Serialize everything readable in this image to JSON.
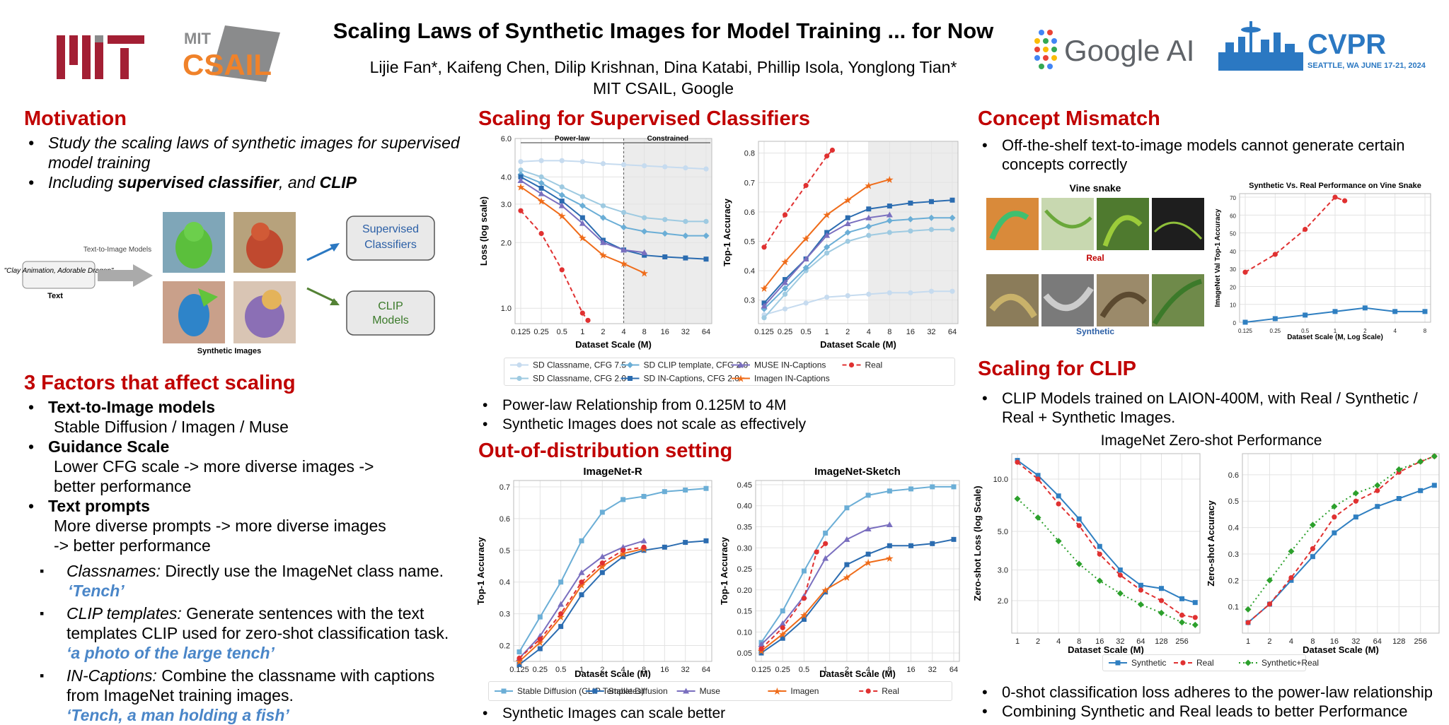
{
  "header": {
    "title": "Scaling Laws of Synthetic Images for Model Training ... for Now",
    "authors": "Lijie Fan*, Kaifeng Chen, Dilip Krishnan, Dina Katabi, Phillip Isola, Yonglong Tian*",
    "affil": "MIT CSAIL, Google",
    "logo_mit": "MIT",
    "logo_csail_top": "MIT",
    "logo_csail": "CSAIL",
    "logo_google": "Google AI",
    "logo_cvpr": "CVPR",
    "logo_cvpr_sub": "SEATTLE, WA  JUNE 17-21, 2024"
  },
  "motivation": {
    "title": "Motivation",
    "b1": "Study the scaling laws of synthetic images for supervised model training",
    "b2_pre": "Including ",
    "b2_b1": "supervised classifier",
    "b2_mid": ", and ",
    "b2_b2": "CLIP",
    "diagram": {
      "prompt": "\"Clay Animation, Adorable Dragon\"",
      "text_label": "Text",
      "arrow_label": "Text-to-Image Models",
      "images_label": "Synthetic Images",
      "box1": "Supervised Classifiers",
      "box2": "CLIP Models"
    }
  },
  "factors": {
    "title": "3 Factors that affect scaling",
    "f1": "Text-to-Image models",
    "f1d": "Stable Diffusion / Imagen / Muse",
    "f2": "Guidance Scale",
    "f2d1": "Lower CFG scale -> more diverse images ->",
    "f2d2": "better performance",
    "f3": "Text prompts",
    "f3d1": "More diverse prompts -> more diverse images",
    "f3d2": "-> better performance",
    "s1_i": "Classnames:",
    "s1": " Directly use the ImageNet class name.",
    "s1_ex": "‘Tench’",
    "s2_i": "CLIP templates:",
    "s2": " Generate sentences with the text templates CLIP used for zero-shot classification task.",
    "s2_ex": "‘a photo of the large tench’",
    "s3_i": "IN-Captions:",
    "s3": " Combine the classname with captions from ImageNet training images.",
    "s3_ex": "‘Tench, a man holding a fish’"
  },
  "supervised": {
    "title": "Scaling for Supervised Classifiers",
    "b1": "Power-law Relationship from 0.125M  to 4M",
    "b2": "Synthetic Images does not scale as effectively",
    "legend": [
      "SD Classname, CFG 7.5",
      "SD Classname, CFG 2.0",
      "SD CLIP template, CFG 2.0",
      "SD IN-Captions, CFG 2.0",
      "MUSE IN-Captions",
      "Imagen IN-Captions",
      "Real"
    ]
  },
  "ood": {
    "title": "Out-of-distribution setting",
    "b1": "Synthetic Images can scale better",
    "legend": [
      "Stable Diffusion (CLIP Templates)",
      "Stable Diffusion",
      "Muse",
      "Imagen",
      "Real"
    ]
  },
  "concept": {
    "title": "Concept Mismatch",
    "b1": "Off-the-shelf text-to-image models cannot generate certain concepts correctly",
    "vine": "Vine snake",
    "real": "Real",
    "synthetic": "Synthetic"
  },
  "clip": {
    "title": "Scaling for CLIP",
    "b1": "CLIP Models trained on LAION-400M, with Real / Synthetic / Real + Synthetic Images.",
    "chart_title": "ImageNet Zero-shot Performance",
    "legend": [
      "Synthetic",
      "Real",
      "Synthetic+Real"
    ],
    "b2": "0-shot classification loss adheres to the power-law relationship",
    "b3": "Combining Synthetic and Real leads to better Performance"
  },
  "colors": {
    "title_red": "#c00000",
    "example_blue": "#4a86c8",
    "mit_red": "#a31f34"
  },
  "chart_data": [
    {
      "id": "sup_loss",
      "type": "line",
      "ylabel": "Loss (log scale)",
      "xlabel": "Dataset Scale (M)",
      "x_ticks": [
        "0.125",
        "0.25",
        "0.5",
        "1",
        "2",
        "4",
        "8",
        "16",
        "32",
        "64"
      ],
      "y_ticks": [
        "1.0",
        "2.0",
        "3.0",
        "4.0",
        "6.0"
      ],
      "y_log": true,
      "ylim": [
        0.85,
        6.0
      ],
      "annotations": [
        "Power-law",
        "Constrained"
      ],
      "series": [
        {
          "name": "SD Classname, CFG 7.5",
          "x": [
            0.125,
            0.25,
            0.5,
            1,
            2,
            4,
            8,
            16,
            32,
            64
          ],
          "y": [
            4.7,
            4.75,
            4.75,
            4.7,
            4.6,
            4.55,
            4.5,
            4.45,
            4.4,
            4.35
          ]
        },
        {
          "name": "SD Classname, CFG 2.0",
          "x": [
            0.125,
            0.25,
            0.5,
            1,
            2,
            4,
            8,
            16,
            32,
            64
          ],
          "y": [
            4.3,
            4.0,
            3.6,
            3.25,
            2.95,
            2.75,
            2.6,
            2.55,
            2.5,
            2.5
          ]
        },
        {
          "name": "SD CLIP template, CFG 2.0",
          "x": [
            0.125,
            0.25,
            0.5,
            1,
            2,
            4,
            8,
            16,
            32,
            64
          ],
          "y": [
            4.1,
            3.75,
            3.3,
            2.95,
            2.6,
            2.35,
            2.25,
            2.2,
            2.15,
            2.15
          ]
        },
        {
          "name": "SD IN-Captions, CFG 2.0",
          "x": [
            0.125,
            0.25,
            0.5,
            1,
            2,
            4,
            8,
            16,
            32,
            64
          ],
          "y": [
            4.0,
            3.55,
            3.1,
            2.6,
            2.05,
            1.85,
            1.75,
            1.72,
            1.7,
            1.68
          ]
        },
        {
          "name": "MUSE IN-Captions",
          "x": [
            0.125,
            0.25,
            0.5,
            1,
            2,
            4,
            8
          ],
          "y": [
            3.85,
            3.35,
            2.95,
            2.45,
            2.0,
            1.85,
            1.8
          ]
        },
        {
          "name": "Imagen IN-Captions",
          "x": [
            0.125,
            0.25,
            0.5,
            1,
            2,
            4,
            8
          ],
          "y": [
            3.6,
            3.1,
            2.65,
            2.1,
            1.75,
            1.6,
            1.45
          ]
        },
        {
          "name": "Real",
          "x": [
            0.125,
            0.25,
            0.5,
            1,
            1.2
          ],
          "y": [
            2.8,
            2.2,
            1.5,
            0.95,
            0.88
          ]
        }
      ]
    },
    {
      "id": "sup_acc",
      "type": "line",
      "ylabel": "Top-1 Accuracy",
      "xlabel": "Dataset Scale (M)",
      "x_ticks": [
        "0.125",
        "0.25",
        "0.5",
        "1",
        "2",
        "4",
        "8",
        "16",
        "32",
        "64"
      ],
      "y_ticks": [
        "0.3",
        "0.4",
        "0.5",
        "0.6",
        "0.7",
        "0.8"
      ],
      "ylim": [
        0.22,
        0.84
      ],
      "series": [
        {
          "name": "SD Classname, CFG 7.5",
          "x": [
            0.125,
            0.25,
            0.5,
            1,
            2,
            4,
            8,
            16,
            32,
            64
          ],
          "y": [
            0.25,
            0.27,
            0.29,
            0.31,
            0.315,
            0.32,
            0.325,
            0.325,
            0.33,
            0.33
          ]
        },
        {
          "name": "SD Classname, CFG 2.0",
          "x": [
            0.125,
            0.25,
            0.5,
            1,
            2,
            4,
            8,
            16,
            32,
            64
          ],
          "y": [
            0.24,
            0.32,
            0.4,
            0.46,
            0.5,
            0.52,
            0.53,
            0.535,
            0.54,
            0.54
          ]
        },
        {
          "name": "SD CLIP template, CFG 2.0",
          "x": [
            0.125,
            0.25,
            0.5,
            1,
            2,
            4,
            8,
            16,
            32,
            64
          ],
          "y": [
            0.27,
            0.34,
            0.41,
            0.48,
            0.53,
            0.55,
            0.57,
            0.575,
            0.58,
            0.58
          ]
        },
        {
          "name": "SD IN-Captions, CFG 2.0",
          "x": [
            0.125,
            0.25,
            0.5,
            1,
            2,
            4,
            8,
            16,
            32,
            64
          ],
          "y": [
            0.29,
            0.37,
            0.44,
            0.53,
            0.58,
            0.61,
            0.62,
            0.63,
            0.635,
            0.64
          ]
        },
        {
          "name": "MUSE IN-Captions",
          "x": [
            0.125,
            0.25,
            0.5,
            1,
            2,
            4,
            8
          ],
          "y": [
            0.28,
            0.36,
            0.44,
            0.52,
            0.56,
            0.58,
            0.59
          ]
        },
        {
          "name": "Imagen IN-Captions",
          "x": [
            0.125,
            0.25,
            0.5,
            1,
            2,
            4,
            8
          ],
          "y": [
            0.34,
            0.43,
            0.51,
            0.59,
            0.64,
            0.69,
            0.71
          ]
        },
        {
          "name": "Real",
          "x": [
            0.125,
            0.25,
            0.5,
            1,
            1.2
          ],
          "y": [
            0.48,
            0.59,
            0.69,
            0.79,
            0.81
          ]
        }
      ]
    },
    {
      "id": "ood_r",
      "type": "line",
      "title": "ImageNet-R",
      "ylabel": "Top-1 Accuracy",
      "xlabel": "Dataset Scale (M)",
      "x_ticks": [
        "0.125",
        "0.25",
        "0.5",
        "1",
        "2",
        "4",
        "8",
        "16",
        "32",
        "64"
      ],
      "y_ticks": [
        "0.2",
        "0.3",
        "0.4",
        "0.5",
        "0.6",
        "0.7"
      ],
      "ylim": [
        0.15,
        0.72
      ],
      "series": [
        {
          "name": "Stable Diffusion (CLIP Templates)",
          "x": [
            0.125,
            0.25,
            0.5,
            1,
            2,
            4,
            8,
            16,
            32,
            64
          ],
          "y": [
            0.18,
            0.29,
            0.4,
            0.53,
            0.62,
            0.66,
            0.67,
            0.685,
            0.69,
            0.695
          ]
        },
        {
          "name": "Stable Diffusion",
          "x": [
            0.125,
            0.25,
            0.5,
            1,
            2,
            4,
            8,
            16,
            32,
            64
          ],
          "y": [
            0.14,
            0.19,
            0.26,
            0.36,
            0.43,
            0.48,
            0.5,
            0.51,
            0.525,
            0.53
          ]
        },
        {
          "name": "Muse",
          "x": [
            0.125,
            0.25,
            0.5,
            1,
            2,
            4,
            8
          ],
          "y": [
            0.16,
            0.23,
            0.33,
            0.43,
            0.48,
            0.51,
            0.53
          ]
        },
        {
          "name": "Imagen",
          "x": [
            0.125,
            0.25,
            0.5,
            1,
            2,
            4,
            8
          ],
          "y": [
            0.15,
            0.21,
            0.29,
            0.39,
            0.45,
            0.49,
            0.505
          ]
        },
        {
          "name": "Real",
          "x": [
            0.125,
            0.25,
            0.5,
            1,
            2,
            4,
            8
          ],
          "y": [
            0.16,
            0.22,
            0.3,
            0.4,
            0.46,
            0.5,
            0.51
          ]
        }
      ]
    },
    {
      "id": "ood_sketch",
      "type": "line",
      "title": "ImageNet-Sketch",
      "ylabel": "Top-1 Accuracy",
      "xlabel": "Dataset Scale (M)",
      "x_ticks": [
        "0.125",
        "0.25",
        "0.5",
        "1",
        "2",
        "4",
        "8",
        "16",
        "32",
        "64"
      ],
      "y_ticks": [
        "0.05",
        "0.10",
        "0.15",
        "0.20",
        "0.25",
        "0.30",
        "0.35",
        "0.40",
        "0.45"
      ],
      "ylim": [
        0.03,
        0.46
      ],
      "series": [
        {
          "name": "Stable Diffusion (CLIP Templates)",
          "x": [
            0.125,
            0.25,
            0.5,
            1,
            2,
            4,
            8,
            16,
            32,
            64
          ],
          "y": [
            0.075,
            0.15,
            0.245,
            0.335,
            0.395,
            0.425,
            0.435,
            0.44,
            0.445,
            0.445
          ]
        },
        {
          "name": "Stable Diffusion",
          "x": [
            0.125,
            0.25,
            0.5,
            1,
            2,
            4,
            8,
            16,
            32,
            64
          ],
          "y": [
            0.05,
            0.085,
            0.13,
            0.195,
            0.26,
            0.285,
            0.305,
            0.305,
            0.31,
            0.32
          ]
        },
        {
          "name": "Muse",
          "x": [
            0.125,
            0.25,
            0.5,
            1,
            2,
            4,
            8
          ],
          "y": [
            0.07,
            0.12,
            0.185,
            0.275,
            0.32,
            0.345,
            0.355
          ]
        },
        {
          "name": "Imagen",
          "x": [
            0.125,
            0.25,
            0.5,
            1,
            2,
            4,
            8
          ],
          "y": [
            0.055,
            0.095,
            0.14,
            0.2,
            0.23,
            0.265,
            0.275
          ]
        },
        {
          "name": "Real",
          "x": [
            0.125,
            0.25,
            0.5,
            0.75,
            1
          ],
          "y": [
            0.06,
            0.11,
            0.18,
            0.29,
            0.31
          ]
        }
      ]
    },
    {
      "id": "vine",
      "type": "line",
      "title": "Synthetic Vs. Real Performance on Vine Snake",
      "ylabel": "ImageNet Val Top-1 Accuracy",
      "xlabel": "Dataset Scale (M, Log Scale)",
      "x_ticks": [
        "0.125",
        "0.25",
        "0.5",
        "1",
        "2",
        "4",
        "8"
      ],
      "y_ticks": [
        "0",
        "10",
        "20",
        "30",
        "40",
        "50",
        "60",
        "70"
      ],
      "ylim": [
        0,
        72
      ],
      "series": [
        {
          "name": "Real",
          "x": [
            0.125,
            0.25,
            0.5,
            1,
            1.25
          ],
          "y": [
            28,
            38,
            52,
            70,
            68
          ]
        },
        {
          "name": "Synthetic",
          "x": [
            0.125,
            0.25,
            0.5,
            1,
            2,
            4,
            8
          ],
          "y": [
            0,
            2,
            4,
            6,
            8,
            6,
            6
          ]
        }
      ]
    },
    {
      "id": "clip_loss",
      "type": "line",
      "ylabel": "Zero-shot Loss (log Scale)",
      "xlabel": "Dataset Scale (M)",
      "x_ticks": [
        "1",
        "2",
        "4",
        "8",
        "16",
        "32",
        "64",
        "128",
        "256"
      ],
      "y_ticks": [
        "2.0",
        "3.0",
        "5.0",
        "10.0"
      ],
      "y_log": true,
      "ylim": [
        1.3,
        14
      ],
      "series": [
        {
          "name": "Synthetic",
          "x": [
            1,
            2,
            4,
            8,
            16,
            32,
            64,
            128,
            256,
            400
          ],
          "y": [
            12.8,
            10.5,
            8.0,
            5.9,
            4.1,
            3.0,
            2.45,
            2.35,
            2.05,
            1.95
          ]
        },
        {
          "name": "Real",
          "x": [
            1,
            2,
            4,
            8,
            16,
            32,
            64,
            128,
            256,
            400
          ],
          "y": [
            12.5,
            10.0,
            7.2,
            5.4,
            3.7,
            2.8,
            2.3,
            2.0,
            1.65,
            1.6
          ]
        },
        {
          "name": "Synthetic+Real",
          "x": [
            1,
            2,
            4,
            8,
            16,
            32,
            64,
            128,
            256,
            400
          ],
          "y": [
            7.7,
            6.0,
            4.4,
            3.25,
            2.6,
            2.2,
            1.9,
            1.7,
            1.5,
            1.45
          ]
        }
      ]
    },
    {
      "id": "clip_acc",
      "type": "line",
      "ylabel": "Zero-shot Accuracy",
      "xlabel": "Dataset Scale (M)",
      "x_ticks": [
        "1",
        "2",
        "4",
        "8",
        "16",
        "32",
        "64",
        "128",
        "256"
      ],
      "y_ticks": [
        "0.1",
        "0.2",
        "0.3",
        "0.4",
        "0.5",
        "0.6"
      ],
      "ylim": [
        0.0,
        0.68
      ],
      "series": [
        {
          "name": "Synthetic",
          "x": [
            1,
            2,
            4,
            8,
            16,
            32,
            64,
            128,
            256,
            400
          ],
          "y": [
            0.04,
            0.11,
            0.2,
            0.29,
            0.38,
            0.44,
            0.48,
            0.51,
            0.54,
            0.56
          ]
        },
        {
          "name": "Real",
          "x": [
            1,
            2,
            4,
            8,
            16,
            32,
            64,
            128,
            256,
            400
          ],
          "y": [
            0.04,
            0.11,
            0.21,
            0.32,
            0.44,
            0.5,
            0.54,
            0.61,
            0.65,
            0.67
          ]
        },
        {
          "name": "Synthetic+Real",
          "x": [
            1,
            2,
            4,
            8,
            16,
            32,
            64,
            128,
            256,
            400
          ],
          "y": [
            0.09,
            0.2,
            0.31,
            0.41,
            0.48,
            0.53,
            0.56,
            0.62,
            0.65,
            0.67
          ]
        }
      ]
    }
  ]
}
